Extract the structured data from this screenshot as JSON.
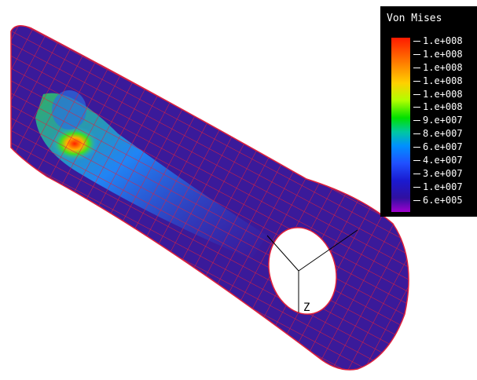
{
  "legend": {
    "title": "Von Mises",
    "labels": [
      "1.e+008",
      "1.e+008",
      "1.e+008",
      "1.e+008",
      "1.e+008",
      "1.e+008",
      "9.e+007",
      "8.e+007",
      "6.e+007",
      "4.e+007",
      "3.e+007",
      "1.e+007",
      "6.e+005"
    ]
  },
  "axis_label": "Z"
}
